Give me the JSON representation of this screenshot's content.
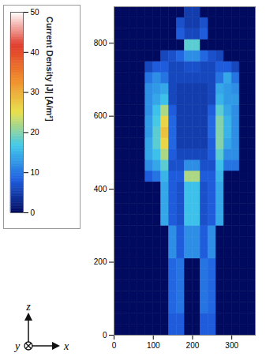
{
  "chart_data": {
    "type": "heatmap",
    "xlim": [
      0,
      360
    ],
    "ylim": [
      0,
      900
    ],
    "xticks": [
      0,
      100,
      200,
      300
    ],
    "yticks": [
      0,
      200,
      400,
      600,
      800
    ],
    "x_edges": [
      0,
      20,
      40,
      60,
      80,
      100,
      120,
      140,
      160,
      180,
      200,
      220,
      240,
      260,
      280,
      300,
      320,
      340,
      360
    ],
    "y_edges": [
      0,
      30,
      60,
      90,
      120,
      150,
      180,
      210,
      240,
      270,
      300,
      330,
      360,
      390,
      420,
      450,
      480,
      510,
      540,
      570,
      600,
      630,
      660,
      690,
      720,
      750,
      780,
      810,
      840,
      870,
      900
    ],
    "values": [
      [
        0,
        0,
        0,
        0,
        0,
        0,
        0,
        8,
        8,
        0,
        0,
        8,
        8,
        0,
        0,
        0,
        0,
        0
      ],
      [
        0,
        0,
        0,
        0,
        0,
        0,
        0,
        8,
        8,
        0,
        0,
        8,
        8,
        0,
        0,
        0,
        0,
        0
      ],
      [
        0,
        0,
        0,
        0,
        0,
        0,
        0,
        9,
        10,
        0,
        0,
        10,
        9,
        0,
        0,
        0,
        0,
        0
      ],
      [
        0,
        0,
        0,
        0,
        0,
        0,
        0,
        9,
        10,
        0,
        0,
        10,
        9,
        0,
        0,
        0,
        0,
        0
      ],
      [
        0,
        0,
        0,
        0,
        0,
        0,
        0,
        9,
        10,
        0,
        0,
        10,
        9,
        0,
        0,
        0,
        0,
        0
      ],
      [
        0,
        0,
        0,
        0,
        0,
        0,
        0,
        9,
        10,
        0,
        0,
        10,
        9,
        0,
        0,
        0,
        0,
        0
      ],
      [
        0,
        0,
        0,
        0,
        0,
        0,
        0,
        9,
        10,
        0,
        0,
        10,
        9,
        0,
        0,
        0,
        0,
        0
      ],
      [
        0,
        0,
        0,
        0,
        0,
        0,
        0,
        12,
        8,
        12,
        12,
        8,
        12,
        0,
        0,
        0,
        0,
        0
      ],
      [
        0,
        0,
        0,
        0,
        0,
        0,
        0,
        12,
        8,
        12,
        12,
        8,
        12,
        0,
        0,
        0,
        0,
        0
      ],
      [
        0,
        0,
        0,
        0,
        0,
        0,
        0,
        12,
        8,
        12,
        12,
        8,
        12,
        0,
        0,
        0,
        0,
        0
      ],
      [
        0,
        0,
        0,
        0,
        0,
        0,
        14,
        8,
        7,
        16,
        16,
        7,
        8,
        14,
        0,
        0,
        0,
        0
      ],
      [
        0,
        0,
        0,
        0,
        0,
        0,
        14,
        8,
        7,
        16,
        16,
        7,
        8,
        14,
        0,
        0,
        0,
        0
      ],
      [
        0,
        0,
        0,
        0,
        0,
        0,
        14,
        8,
        7,
        16,
        16,
        7,
        8,
        14,
        0,
        0,
        0,
        0
      ],
      [
        0,
        0,
        0,
        0,
        0,
        0,
        14,
        8,
        7,
        16,
        16,
        7,
        8,
        14,
        0,
        0,
        0,
        0
      ],
      [
        0,
        0,
        0,
        0,
        8,
        10,
        15,
        8,
        8,
        22,
        22,
        8,
        8,
        15,
        0,
        0,
        0,
        0
      ],
      [
        0,
        0,
        0,
        0,
        12,
        14,
        18,
        7,
        7,
        12,
        12,
        7,
        7,
        16,
        10,
        10,
        0,
        0
      ],
      [
        0,
        0,
        0,
        0,
        14,
        16,
        22,
        8,
        6,
        6,
        6,
        6,
        8,
        18,
        12,
        12,
        0,
        0
      ],
      [
        0,
        0,
        0,
        0,
        14,
        18,
        26,
        9,
        5,
        5,
        5,
        5,
        8,
        20,
        14,
        12,
        0,
        0
      ],
      [
        0,
        0,
        0,
        0,
        13,
        18,
        28,
        9,
        5,
        5,
        5,
        5,
        9,
        20,
        15,
        12,
        0,
        0
      ],
      [
        0,
        0,
        0,
        0,
        13,
        17,
        26,
        9,
        5,
        5,
        5,
        5,
        9,
        20,
        15,
        12,
        0,
        0
      ],
      [
        0,
        0,
        0,
        0,
        12,
        16,
        22,
        8,
        5,
        5,
        5,
        5,
        8,
        18,
        14,
        12,
        0,
        0
      ],
      [
        0,
        0,
        0,
        0,
        12,
        14,
        16,
        6,
        5,
        5,
        5,
        5,
        6,
        15,
        13,
        13,
        0,
        0
      ],
      [
        0,
        0,
        0,
        0,
        12,
        13,
        14,
        6,
        5,
        5,
        5,
        5,
        6,
        14,
        13,
        12,
        0,
        0
      ],
      [
        0,
        0,
        0,
        0,
        10,
        12,
        10,
        6,
        6,
        6,
        6,
        6,
        6,
        10,
        14,
        10,
        0,
        0
      ],
      [
        0,
        0,
        0,
        0,
        6,
        8,
        8,
        6,
        6,
        7,
        7,
        6,
        6,
        8,
        8,
        6,
        0,
        0
      ],
      [
        0,
        0,
        0,
        0,
        0,
        0,
        6,
        7,
        9,
        12,
        12,
        9,
        7,
        6,
        0,
        0,
        0,
        0
      ],
      [
        0,
        0,
        0,
        0,
        0,
        0,
        0,
        0,
        0,
        18,
        18,
        0,
        0,
        0,
        0,
        0,
        0,
        0
      ],
      [
        0,
        0,
        0,
        0,
        0,
        0,
        0,
        0,
        8,
        6,
        6,
        8,
        0,
        0,
        0,
        0,
        0,
        0
      ],
      [
        0,
        0,
        0,
        0,
        0,
        0,
        0,
        0,
        7,
        5,
        5,
        7,
        0,
        0,
        0,
        0,
        0,
        0
      ],
      [
        0,
        0,
        0,
        0,
        0,
        0,
        0,
        0,
        0,
        5,
        5,
        0,
        0,
        0,
        0,
        0,
        0,
        0
      ]
    ],
    "colorbar": {
      "label": "Current Density |J| [A/m²]",
      "range": [
        0,
        50
      ],
      "ticks": [
        0,
        10,
        20,
        30,
        40,
        50
      ],
      "colors": [
        "#000a5e",
        "#1f5fe0",
        "#40c8ea",
        "#e8e04c",
        "#f08a2a",
        "#e03a2a",
        "#ffffff"
      ]
    },
    "axis_labels": {
      "up": "z",
      "into": "y",
      "right": "x"
    }
  }
}
